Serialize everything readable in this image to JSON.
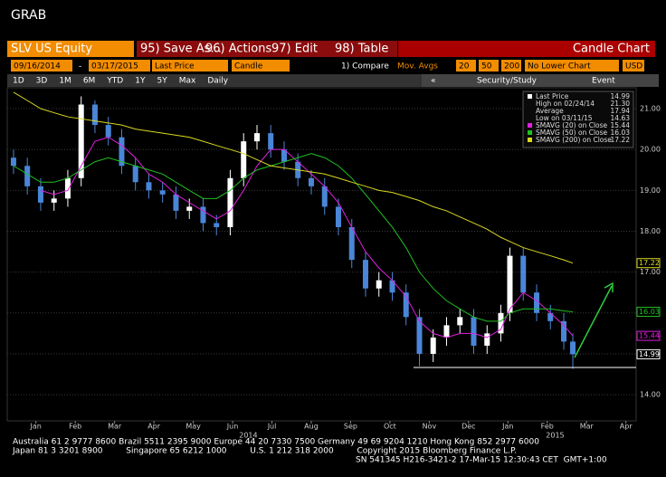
{
  "window_title": "GRAB",
  "toolbar": {
    "security": "SLV US Equity",
    "buttons": [
      "95) Save As...",
      "96) Actions",
      "97) Edit",
      "98) Table"
    ],
    "view": "Candle Chart"
  },
  "settings": {
    "start": "09/16/2014",
    "dash": "-",
    "end": "03/17/2015",
    "field": "Last Price",
    "style": "Candle",
    "compare": "1) Compare",
    "mov_avgs": "Mov. Avgs",
    "periods": [
      "20",
      "50",
      "200"
    ],
    "lower": "No Lower Chart",
    "currency": "USD"
  },
  "ranges": [
    "1D",
    "3D",
    "1M",
    "6M",
    "YTD",
    "1Y",
    "5Y",
    "Max"
  ],
  "frequency": "Daily",
  "nav": "«",
  "study": "Security/Study",
  "event": "Event",
  "legend": [
    {
      "label": "Last Price",
      "value": "14.99"
    },
    {
      "label": "High on 02/24/14",
      "value": "21.30"
    },
    {
      "label": "Average",
      "value": "17.94"
    },
    {
      "label": "Low on 03/11/15",
      "value": "14.63"
    },
    {
      "label": "SMAVG (20) on Close",
      "value": "15.44"
    },
    {
      "label": "SMAVG (50) on Close",
      "value": "16.03"
    },
    {
      "label": "SMAVG (200) on Close",
      "value": "17.22"
    }
  ],
  "chart_data": {
    "type": "candlestick",
    "x": [
      -0.07,
      0.28,
      0.62,
      0.96,
      1.31,
      1.65,
      2.0,
      2.34,
      2.68,
      3.03,
      3.37,
      3.72,
      4.06,
      4.4,
      4.75,
      5.09,
      5.44,
      5.78,
      6.12,
      6.47,
      6.81,
      7.16,
      7.5,
      7.84,
      8.19,
      8.53,
      8.88,
      9.22,
      9.56,
      9.91,
      10.25,
      10.6,
      10.94,
      11.28,
      11.63,
      11.97,
      12.32,
      12.55,
      12.89,
      13.23,
      13.58,
      13.92,
      14.15
    ],
    "open": [
      19.8,
      19.6,
      19.1,
      18.7,
      18.8,
      19.3,
      21.1,
      20.6,
      20.3,
      19.6,
      19.2,
      19.0,
      18.9,
      18.5,
      18.6,
      18.2,
      18.1,
      19.3,
      20.2,
      20.4,
      20.0,
      19.7,
      19.3,
      19.1,
      18.6,
      18.1,
      17.3,
      16.6,
      16.8,
      16.5,
      15.9,
      15.0,
      15.4,
      15.7,
      15.9,
      15.2,
      15.5,
      16.0,
      17.4,
      16.5,
      16.0,
      15.8,
      15.3
    ],
    "high": [
      20.0,
      19.8,
      19.3,
      19.0,
      19.5,
      21.3,
      21.2,
      20.8,
      20.5,
      19.8,
      19.4,
      19.2,
      19.1,
      18.8,
      18.8,
      18.4,
      19.5,
      20.4,
      20.6,
      20.6,
      20.2,
      19.9,
      19.5,
      19.3,
      18.8,
      18.3,
      17.5,
      17.0,
      17.0,
      16.7,
      16.1,
      15.6,
      15.9,
      16.1,
      16.1,
      15.7,
      16.2,
      17.6,
      17.6,
      16.7,
      16.2,
      16.0,
      15.5
    ],
    "low": [
      19.4,
      18.9,
      18.5,
      18.5,
      18.6,
      19.1,
      20.4,
      20.1,
      19.4,
      19.0,
      18.8,
      18.7,
      18.3,
      18.3,
      18.0,
      17.9,
      17.9,
      19.1,
      20.0,
      19.8,
      19.5,
      19.1,
      18.9,
      18.4,
      17.9,
      17.1,
      16.4,
      16.4,
      16.3,
      15.7,
      14.7,
      14.8,
      15.2,
      15.5,
      15.0,
      15.0,
      15.3,
      15.8,
      16.3,
      15.8,
      15.6,
      15.1,
      14.63
    ],
    "close": [
      19.6,
      19.1,
      18.7,
      18.8,
      19.3,
      21.1,
      20.6,
      20.3,
      19.6,
      19.2,
      19.0,
      18.9,
      18.5,
      18.6,
      18.2,
      18.1,
      19.3,
      20.2,
      20.4,
      20.0,
      19.7,
      19.3,
      19.1,
      18.6,
      18.1,
      17.3,
      16.6,
      16.8,
      16.5,
      15.9,
      15.0,
      15.4,
      15.7,
      15.9,
      15.2,
      15.5,
      16.0,
      17.4,
      16.5,
      16.0,
      15.8,
      15.3,
      14.99
    ],
    "up_color": "#ffffff",
    "down_color": "#4a86d8",
    "series": [
      {
        "name": "SMAVG (20)",
        "color": "#e020e0",
        "values": [
          null,
          null,
          19.0,
          18.9,
          19.0,
          19.6,
          20.2,
          20.3,
          20.1,
          19.8,
          19.4,
          19.2,
          18.9,
          18.7,
          18.5,
          18.3,
          18.5,
          19.0,
          19.6,
          20.0,
          20.0,
          19.7,
          19.4,
          19.1,
          18.7,
          18.1,
          17.5,
          17.1,
          16.8,
          16.4,
          15.8,
          15.5,
          15.4,
          15.5,
          15.5,
          15.4,
          15.6,
          16.1,
          16.5,
          16.3,
          16.0,
          15.7,
          15.44
        ]
      },
      {
        "name": "SMAVG (50)",
        "color": "#20c020",
        "values": [
          19.6,
          19.4,
          19.2,
          19.2,
          19.3,
          19.5,
          19.7,
          19.8,
          19.7,
          19.6,
          19.5,
          19.4,
          19.2,
          19.0,
          18.8,
          18.8,
          19.0,
          19.3,
          19.5,
          19.6,
          19.7,
          19.8,
          19.9,
          19.8,
          19.6,
          19.3,
          18.9,
          18.5,
          18.1,
          17.6,
          17.0,
          16.6,
          16.3,
          16.1,
          15.9,
          15.8,
          15.8,
          16.0,
          16.1,
          16.1,
          16.1,
          16.05,
          16.03
        ]
      },
      {
        "name": "SMAVG (200)",
        "color": "#d8d820",
        "values": [
          21.4,
          21.2,
          21.0,
          20.9,
          20.8,
          20.75,
          20.7,
          20.65,
          20.6,
          20.5,
          20.45,
          20.4,
          20.35,
          20.3,
          20.2,
          20.1,
          20.0,
          19.9,
          19.75,
          19.6,
          19.55,
          19.5,
          19.45,
          19.4,
          19.3,
          19.2,
          19.1,
          19.0,
          18.95,
          18.85,
          18.75,
          18.6,
          18.5,
          18.35,
          18.2,
          18.05,
          17.85,
          17.75,
          17.6,
          17.5,
          17.4,
          17.3,
          17.22
        ]
      }
    ],
    "xlim": [
      -0.23,
      15.76
    ],
    "ylim": [
      13.36,
      21.51
    ],
    "xticks": [
      {
        "value": 0.5,
        "label": "Jan"
      },
      {
        "value": 1.5,
        "label": "Feb"
      },
      {
        "value": 2.5,
        "label": "Mar"
      },
      {
        "value": 3.5,
        "label": "Apr"
      },
      {
        "value": 4.5,
        "label": "May"
      },
      {
        "value": 5.5,
        "label": "Jun"
      },
      {
        "value": 6.5,
        "label": "Jul"
      },
      {
        "value": 7.5,
        "label": "Aug"
      },
      {
        "value": 8.5,
        "label": "Sep"
      },
      {
        "value": 9.5,
        "label": "Oct"
      },
      {
        "value": 10.5,
        "label": "Nov"
      },
      {
        "value": 11.5,
        "label": "Dec"
      },
      {
        "value": 12.5,
        "label": "Jan"
      },
      {
        "value": 13.5,
        "label": "Feb"
      },
      {
        "value": 14.5,
        "label": "Mar"
      },
      {
        "value": 15.5,
        "label": "Apr"
      }
    ],
    "year_ticks": [
      {
        "value": 5.9,
        "label": "2014"
      },
      {
        "value": 13.7,
        "label": "2015"
      }
    ],
    "yticks": [
      {
        "value": 14,
        "label": "14.00"
      },
      {
        "value": 15,
        "label": "15.00"
      },
      {
        "value": 16,
        "label": "16.00"
      },
      {
        "value": 17,
        "label": "17.00"
      },
      {
        "value": 18,
        "label": "18.00"
      },
      {
        "value": 19,
        "label": "19.00"
      },
      {
        "value": 20,
        "label": "20.00"
      },
      {
        "value": 21,
        "label": "21.00"
      }
    ],
    "grid": true
  },
  "footer": [
    "Australia 61 2 9777 8600 Brazil 5511 2395 9000 Europe 44 20 7330 7500 Germany 49 69 9204 1210 Hong Kong 852 2977 6000",
    "Japan 81 3 3201 8900         Singapore 65 6212 1000         U.S. 1 212 318 2000         Copyright 2015 Bloomberg Finance L.P.",
    "SN 541345 H216-3421-2 17-Mar-15 12:30:43 CET  GMT+1:00"
  ]
}
